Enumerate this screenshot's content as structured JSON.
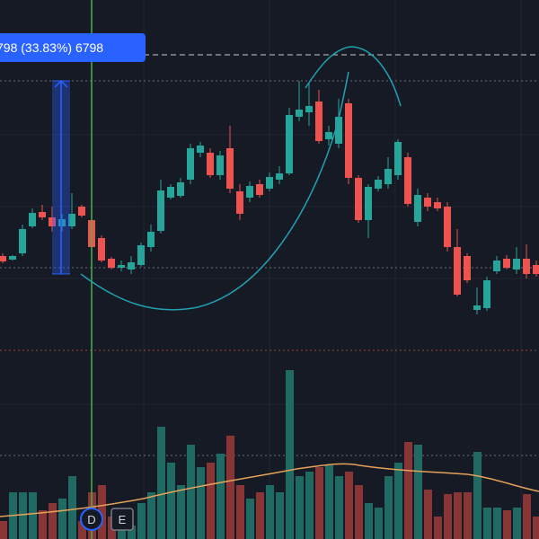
{
  "measure_label": "798 (33.83%) 6798",
  "buttons": [
    "D",
    "E"
  ]
}
